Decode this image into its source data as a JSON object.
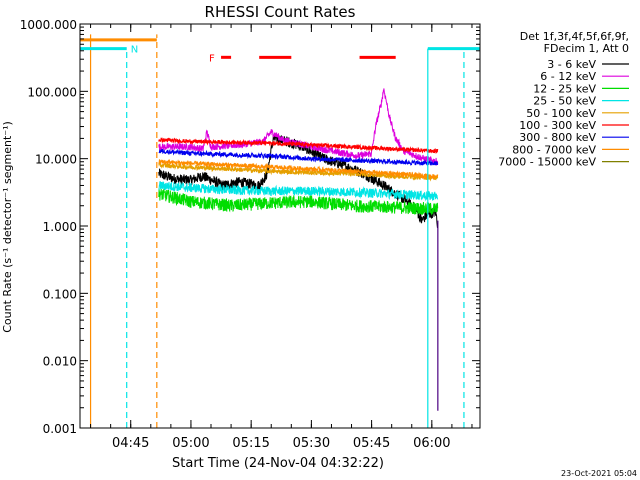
{
  "chart_data": {
    "type": "line",
    "title": "RHESSI Count Rates",
    "xlabel": "Start Time (24-Nov-04 04:32:22)",
    "ylabel": "Count Rate (s⁻¹ detector⁻¹ segment⁻¹)",
    "y_scale": "log",
    "ylim": [
      0.001,
      1000
    ],
    "xlim": [
      "04:32:22",
      "06:12:00"
    ],
    "x_ticks": [
      "04:45",
      "05:00",
      "05:15",
      "05:30",
      "05:45",
      "06:00"
    ],
    "y_ticks": [
      "0.001",
      "0.010",
      "0.100",
      "1.000",
      "10.000",
      "100.000",
      "1000.000"
    ],
    "grid": false,
    "legend_position": "right",
    "legend_header": [
      "Det 1f,3f,4f,5f,6f,9f,",
      "FDecim 1, Att 0"
    ],
    "series": [
      {
        "name": "3 - 6 keV",
        "color": "#000000",
        "points": [
          [
            "04:52:00",
            6.0
          ],
          [
            "04:56:00",
            5.0
          ],
          [
            "05:00:00",
            4.8
          ],
          [
            "05:03:00",
            5.5
          ],
          [
            "05:08:00",
            4.0
          ],
          [
            "05:12:00",
            4.5
          ],
          [
            "05:17:00",
            4.0
          ],
          [
            "05:19:00",
            6.0
          ],
          [
            "05:20:30",
            20.0
          ],
          [
            "05:24:00",
            18.0
          ],
          [
            "05:28:00",
            15.0
          ],
          [
            "05:33:00",
            10.0
          ],
          [
            "05:38:00",
            8.0
          ],
          [
            "05:43:00",
            6.0
          ],
          [
            "05:48:00",
            4.0
          ],
          [
            "05:53:00",
            2.5
          ],
          [
            "05:56:00",
            1.8
          ],
          [
            "05:57:30",
            1.2
          ],
          [
            "05:59:00",
            1.5
          ],
          [
            "06:01:00",
            1.6
          ],
          [
            "06:01:30",
            1.0
          ]
        ]
      },
      {
        "name": "6 - 12 keV",
        "color": "#dd00dd",
        "points": [
          [
            "04:52:00",
            15.0
          ],
          [
            "05:00:00",
            15.0
          ],
          [
            "05:03:00",
            14.0
          ],
          [
            "05:04:00",
            25.0
          ],
          [
            "05:05:00",
            15.0
          ],
          [
            "05:12:00",
            16.0
          ],
          [
            "05:18:00",
            18.0
          ],
          [
            "05:20:00",
            25.0
          ],
          [
            "05:23:00",
            19.0
          ],
          [
            "05:30:00",
            15.0
          ],
          [
            "05:38:00",
            12.0
          ],
          [
            "05:42:00",
            11.0
          ],
          [
            "05:45:00",
            12.0
          ],
          [
            "05:46:00",
            30.0
          ],
          [
            "05:47:30",
            70.0
          ],
          [
            "05:48:00",
            110.0
          ],
          [
            "05:48:30",
            80.0
          ],
          [
            "05:49:30",
            40.0
          ],
          [
            "05:51:00",
            20.0
          ],
          [
            "05:53:00",
            13.0
          ],
          [
            "05:58:00",
            10.0
          ],
          [
            "06:01:30",
            9.0
          ]
        ]
      },
      {
        "name": "12 - 25 keV",
        "color": "#00dd00",
        "points": [
          [
            "04:52:00",
            3.0
          ],
          [
            "05:00:00",
            2.3
          ],
          [
            "05:10:00",
            2.0
          ],
          [
            "05:20:00",
            2.2
          ],
          [
            "05:30:00",
            2.3
          ],
          [
            "05:40:00",
            2.0
          ],
          [
            "05:50:00",
            1.9
          ],
          [
            "06:00:00",
            1.8
          ],
          [
            "06:01:30",
            1.8
          ]
        ]
      },
      {
        "name": "25 - 50 keV",
        "color": "#00e5e5",
        "points": [
          [
            "04:52:00",
            4.0
          ],
          [
            "05:00:00",
            3.7
          ],
          [
            "05:10:00",
            3.4
          ],
          [
            "05:20:00",
            3.3
          ],
          [
            "05:30:00",
            3.3
          ],
          [
            "05:40:00",
            3.2
          ],
          [
            "05:50:00",
            3.0
          ],
          [
            "06:00:00",
            2.8
          ],
          [
            "06:01:30",
            2.8
          ]
        ]
      },
      {
        "name": "50 - 100 keV",
        "color": "#e5a000",
        "points": [
          [
            "04:52:00",
            8.0
          ],
          [
            "05:00:00",
            7.5
          ],
          [
            "05:10:00",
            7.0
          ],
          [
            "05:20:00",
            6.5
          ],
          [
            "05:30:00",
            6.2
          ],
          [
            "05:40:00",
            6.0
          ],
          [
            "05:50:00",
            5.5
          ],
          [
            "06:00:00",
            5.2
          ],
          [
            "06:01:30",
            5.2
          ]
        ]
      },
      {
        "name": "100 - 300 keV",
        "color": "#ff0000",
        "points": [
          [
            "04:52:00",
            19.0
          ],
          [
            "05:00:00",
            18.0
          ],
          [
            "05:10:00",
            17.5
          ],
          [
            "05:20:00",
            17.0
          ],
          [
            "05:30:00",
            16.0
          ],
          [
            "05:40:00",
            15.0
          ],
          [
            "05:50:00",
            14.0
          ],
          [
            "06:00:00",
            13.0
          ],
          [
            "06:01:30",
            13.0
          ]
        ]
      },
      {
        "name": "300 - 800 keV",
        "color": "#0000ee",
        "points": [
          [
            "04:52:00",
            13.0
          ],
          [
            "05:00:00",
            12.0
          ],
          [
            "05:10:00",
            11.5
          ],
          [
            "05:20:00",
            11.0
          ],
          [
            "05:30:00",
            10.0
          ],
          [
            "05:40:00",
            9.5
          ],
          [
            "05:50:00",
            9.0
          ],
          [
            "06:00:00",
            8.5
          ],
          [
            "06:01:30",
            8.5
          ]
        ]
      },
      {
        "name": "800 - 7000 keV",
        "color": "#ff8c00",
        "points": [
          [
            "04:52:00",
            9.0
          ],
          [
            "05:00:00",
            8.5
          ],
          [
            "05:10:00",
            8.0
          ],
          [
            "05:20:00",
            7.5
          ],
          [
            "05:30:00",
            7.0
          ],
          [
            "05:40:00",
            6.5
          ],
          [
            "05:50:00",
            6.0
          ],
          [
            "06:00:00",
            5.5
          ],
          [
            "06:01:30",
            5.5
          ]
        ]
      },
      {
        "name": "7000 - 15000 keV",
        "color": "#808000",
        "points": []
      }
    ],
    "flag_bars": [
      {
        "label": "",
        "color": "#ff8c00",
        "y": 580,
        "segments": [
          [
            "04:32:22",
            "04:51:30"
          ]
        ]
      },
      {
        "label": "N",
        "color": "#00e5e5",
        "y": 430,
        "segments": [
          [
            "04:32:22",
            "04:44:00"
          ],
          [
            "05:59:00",
            "06:12:00"
          ]
        ]
      },
      {
        "label": "F",
        "color": "#ff0000",
        "y": 320,
        "segments": [
          [
            "05:07:30",
            "05:10:00"
          ],
          [
            "05:17:00",
            "05:25:00"
          ],
          [
            "05:42:00",
            "05:51:00"
          ]
        ]
      }
    ],
    "vertical_lines": [
      {
        "time": "04:35:00",
        "color": "#ff8c00",
        "style": "solid",
        "y_range": [
          0.001,
          700
        ]
      },
      {
        "time": "04:44:00",
        "color": "#00e5e5",
        "style": "dashed",
        "y_range": [
          0.001,
          430
        ]
      },
      {
        "time": "04:51:30",
        "color": "#ff8c00",
        "style": "dashed",
        "y_range": [
          0.001,
          700
        ]
      },
      {
        "time": "05:59:00",
        "color": "#00e5e5",
        "style": "solid",
        "y_range": [
          0.001,
          430
        ]
      },
      {
        "time": "06:08:00",
        "color": "#00e5e5",
        "style": "dashed",
        "y_range": [
          0.001,
          430
        ]
      },
      {
        "time": "06:01:30",
        "color": "#4b0082",
        "style": "solid",
        "y_range": [
          0.0018,
          1.2
        ]
      }
    ]
  },
  "footer": {
    "timestamp": "23-Oct-2021 05:04"
  }
}
